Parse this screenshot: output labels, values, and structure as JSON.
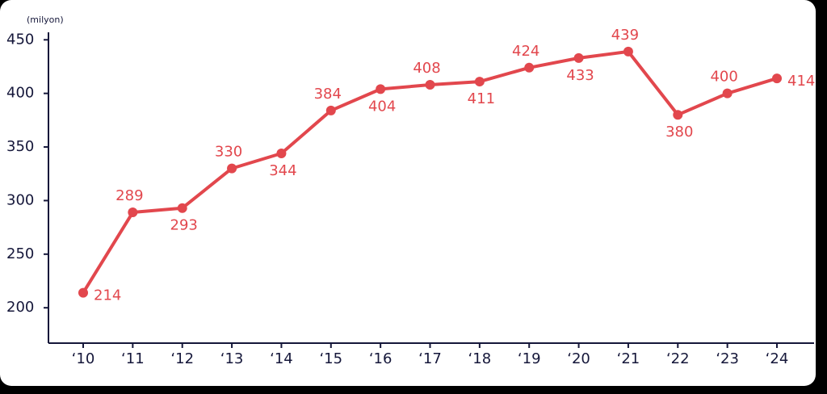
{
  "chart_data": {
    "type": "line",
    "ylabel": "(milyon)",
    "categories": [
      "‘10",
      "‘11",
      "‘12",
      "‘13",
      "‘14",
      "‘15",
      "‘16",
      "‘17",
      "‘18",
      "‘19",
      "‘20",
      "‘21",
      "‘22",
      "‘23",
      "‘24"
    ],
    "series": [
      {
        "color": "#e2474d",
        "values": [
          214,
          289,
          293,
          330,
          344,
          384,
          404,
          408,
          411,
          424,
          433,
          439,
          380,
          400,
          414
        ]
      }
    ],
    "ylim": [
      167,
      457
    ],
    "yticks": [
      200,
      250,
      300,
      350,
      400,
      450
    ]
  }
}
